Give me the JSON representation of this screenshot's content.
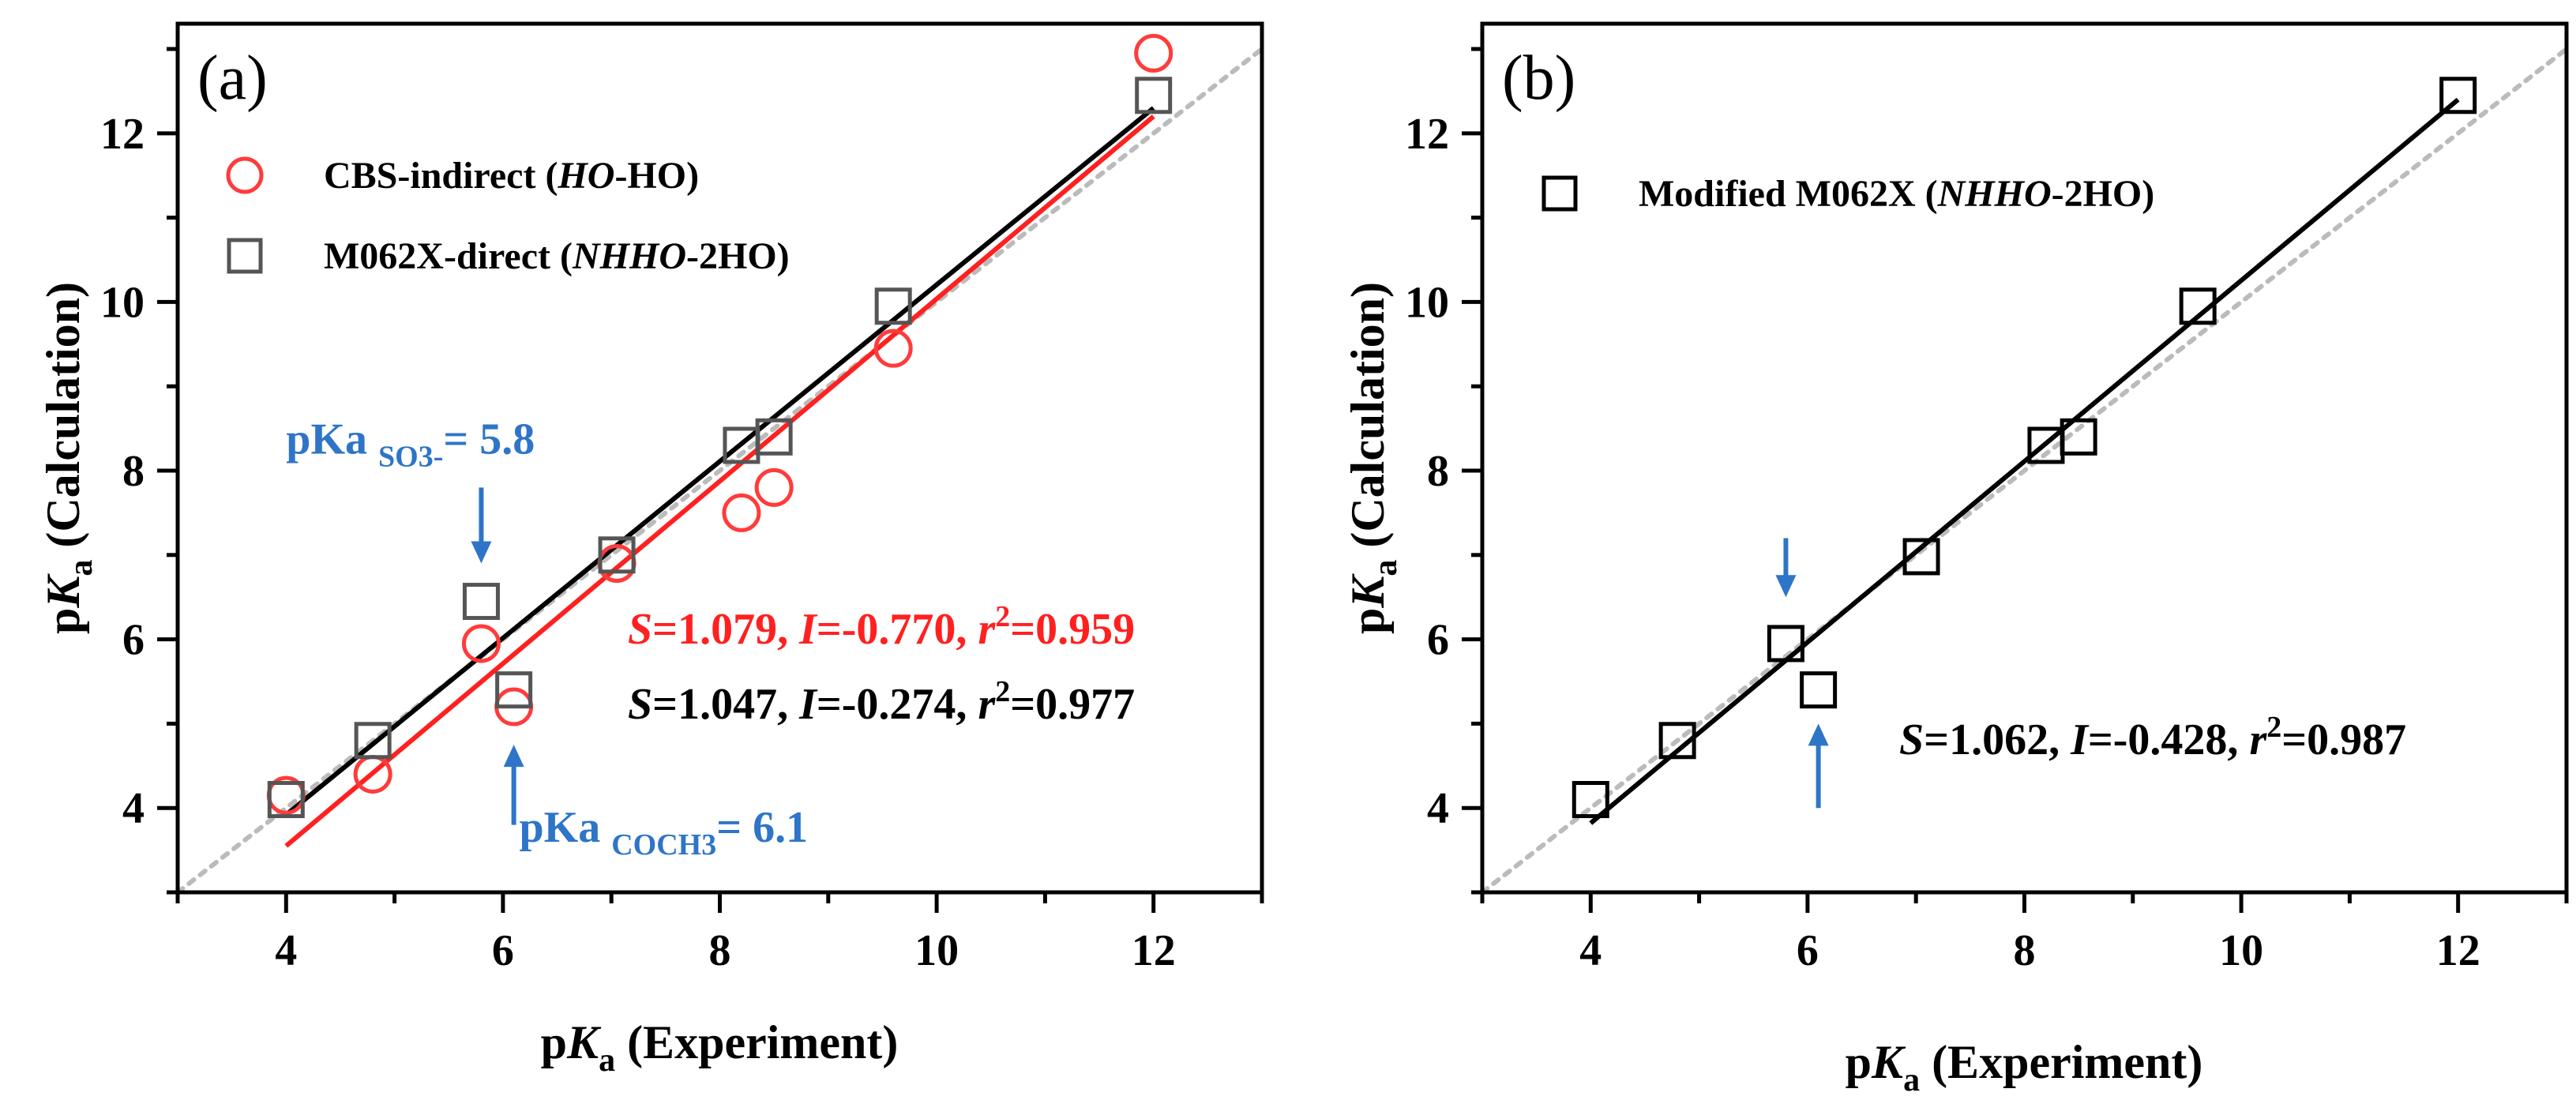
{
  "chart_data": [
    {
      "panel_label": "(a)",
      "type": "scatter",
      "xlabel": {
        "pre": "p",
        "italic": "K",
        "sub": "a",
        "post": " (Experiment)"
      },
      "ylabel": {
        "pre": "p",
        "italic": "K",
        "sub": "a",
        "post": " (Calculation)"
      },
      "xlim": [
        3,
        13
      ],
      "ylim": [
        3,
        13.3
      ],
      "xticks": [
        4,
        6,
        8,
        10,
        12
      ],
      "yticks": [
        4,
        6,
        8,
        10,
        12
      ],
      "diagonal": {
        "style": "dotted",
        "color": "#bbbbbb",
        "from": [
          3,
          3
        ],
        "to": [
          13,
          13
        ]
      },
      "series": [
        {
          "name": "CBS-indirect (HO-HO)",
          "legend": [
            {
              "t": "CBS-indirect ("
            },
            {
              "t": "HO",
              "i": true
            },
            {
              "t": "-HO)"
            }
          ],
          "marker": "circle",
          "color": "#ff3b3b",
          "x": [
            4.0,
            4.8,
            5.8,
            6.1,
            7.05,
            8.2,
            8.5,
            9.6,
            12.0
          ],
          "y": [
            4.15,
            4.4,
            5.95,
            5.2,
            6.9,
            7.5,
            7.8,
            9.45,
            12.95
          ],
          "fit": {
            "x": [
              4.0,
              12.0
            ],
            "y": [
              3.55,
              12.2
            ],
            "color": "#ff2020"
          }
        },
        {
          "name": "M062X-direct (NHHO-2HO)",
          "legend": [
            {
              "t": "M062X-direct ("
            },
            {
              "t": "NHHO",
              "i": true
            },
            {
              "t": "-2HO)"
            }
          ],
          "marker": "square",
          "color": "#555555",
          "x": [
            4.0,
            4.8,
            5.8,
            6.1,
            7.05,
            8.2,
            8.5,
            9.6,
            12.0
          ],
          "y": [
            4.1,
            4.8,
            6.45,
            5.4,
            7.0,
            8.3,
            8.4,
            9.95,
            12.45
          ],
          "fit": {
            "x": [
              4.0,
              12.0
            ],
            "y": [
              3.92,
              12.3
            ],
            "color": "#000000"
          }
        }
      ],
      "stats": [
        {
          "color": "#ff2020",
          "parts": [
            {
              "t": "S",
              "i": true
            },
            {
              "t": "=1.079, "
            },
            {
              "t": "I",
              "i": true
            },
            {
              "t": "=-0.770, "
            },
            {
              "t": "r",
              "i": true
            },
            {
              "t": "2",
              "sup": true
            },
            {
              "t": "=0.959"
            }
          ]
        },
        {
          "color": "#000000",
          "parts": [
            {
              "t": "S",
              "i": true
            },
            {
              "t": "=1.047, "
            },
            {
              "t": "I",
              "i": true
            },
            {
              "t": "=-0.274, "
            },
            {
              "t": "r",
              "i": true
            },
            {
              "t": "2",
              "sup": true
            },
            {
              "t": "=0.977"
            }
          ]
        }
      ],
      "annotations": [
        {
          "color": "#2e75c8",
          "arrow": {
            "x": 5.8,
            "y_from": 7.8,
            "y_to": 6.9
          },
          "label": {
            "x": 4.0,
            "y": 8.2,
            "parts": [
              {
                "t": "pKa "
              },
              {
                "t": "SO3-",
                "sub": true
              },
              {
                "t": "= 5.8"
              }
            ]
          }
        },
        {
          "color": "#2e75c8",
          "arrow": {
            "x": 6.1,
            "y_from": 3.8,
            "y_to": 4.75
          },
          "label": {
            "x": 6.15,
            "y": 3.6,
            "parts": [
              {
                "t": "pKa "
              },
              {
                "t": "COCH3",
                "sub": true
              },
              {
                "t": "= 6.1"
              }
            ]
          }
        }
      ]
    },
    {
      "panel_label": "(b)",
      "type": "scatter",
      "xlabel": {
        "pre": "p",
        "italic": "K",
        "sub": "a",
        "post": " (Experiment)"
      },
      "ylabel": {
        "pre": "p",
        "italic": "K",
        "sub": "a",
        "post": " (Calculation)"
      },
      "xlim": [
        3,
        13
      ],
      "ylim": [
        3,
        13.3
      ],
      "xticks": [
        4,
        6,
        8,
        10,
        12
      ],
      "yticks": [
        4,
        6,
        8,
        10,
        12
      ],
      "diagonal": {
        "style": "dotted",
        "color": "#bbbbbb",
        "from": [
          3,
          3
        ],
        "to": [
          13,
          13
        ]
      },
      "series": [
        {
          "name": "Modified M062X (NHHO-2HO)",
          "legend": [
            {
              "t": "Modified M062X ("
            },
            {
              "t": "NHHO",
              "i": true
            },
            {
              "t": "-2HO)"
            }
          ],
          "marker": "square",
          "color": "#000000",
          "x": [
            4.0,
            4.8,
            5.8,
            6.1,
            7.05,
            8.2,
            8.5,
            9.6,
            12.0
          ],
          "y": [
            4.1,
            4.8,
            5.95,
            5.4,
            6.98,
            8.3,
            8.4,
            9.95,
            12.45
          ],
          "fit": {
            "x": [
              4.0,
              12.0
            ],
            "y": [
              3.82,
              12.4
            ],
            "color": "#000000"
          }
        }
      ],
      "stats": [
        {
          "color": "#000000",
          "parts": [
            {
              "t": "S",
              "i": true
            },
            {
              "t": "=1.062, "
            },
            {
              "t": "I",
              "i": true
            },
            {
              "t": "=-0.428, "
            },
            {
              "t": "r",
              "i": true
            },
            {
              "t": "2",
              "sup": true
            },
            {
              "t": "=0.987"
            }
          ]
        }
      ],
      "annotations": [
        {
          "color": "#2e75c8",
          "arrow": {
            "x": 5.8,
            "y_from": 7.2,
            "y_to": 6.5
          },
          "label": null
        },
        {
          "color": "#2e75c8",
          "arrow": {
            "x": 6.1,
            "y_from": 4.0,
            "y_to": 5.0
          },
          "label": null
        }
      ]
    }
  ]
}
